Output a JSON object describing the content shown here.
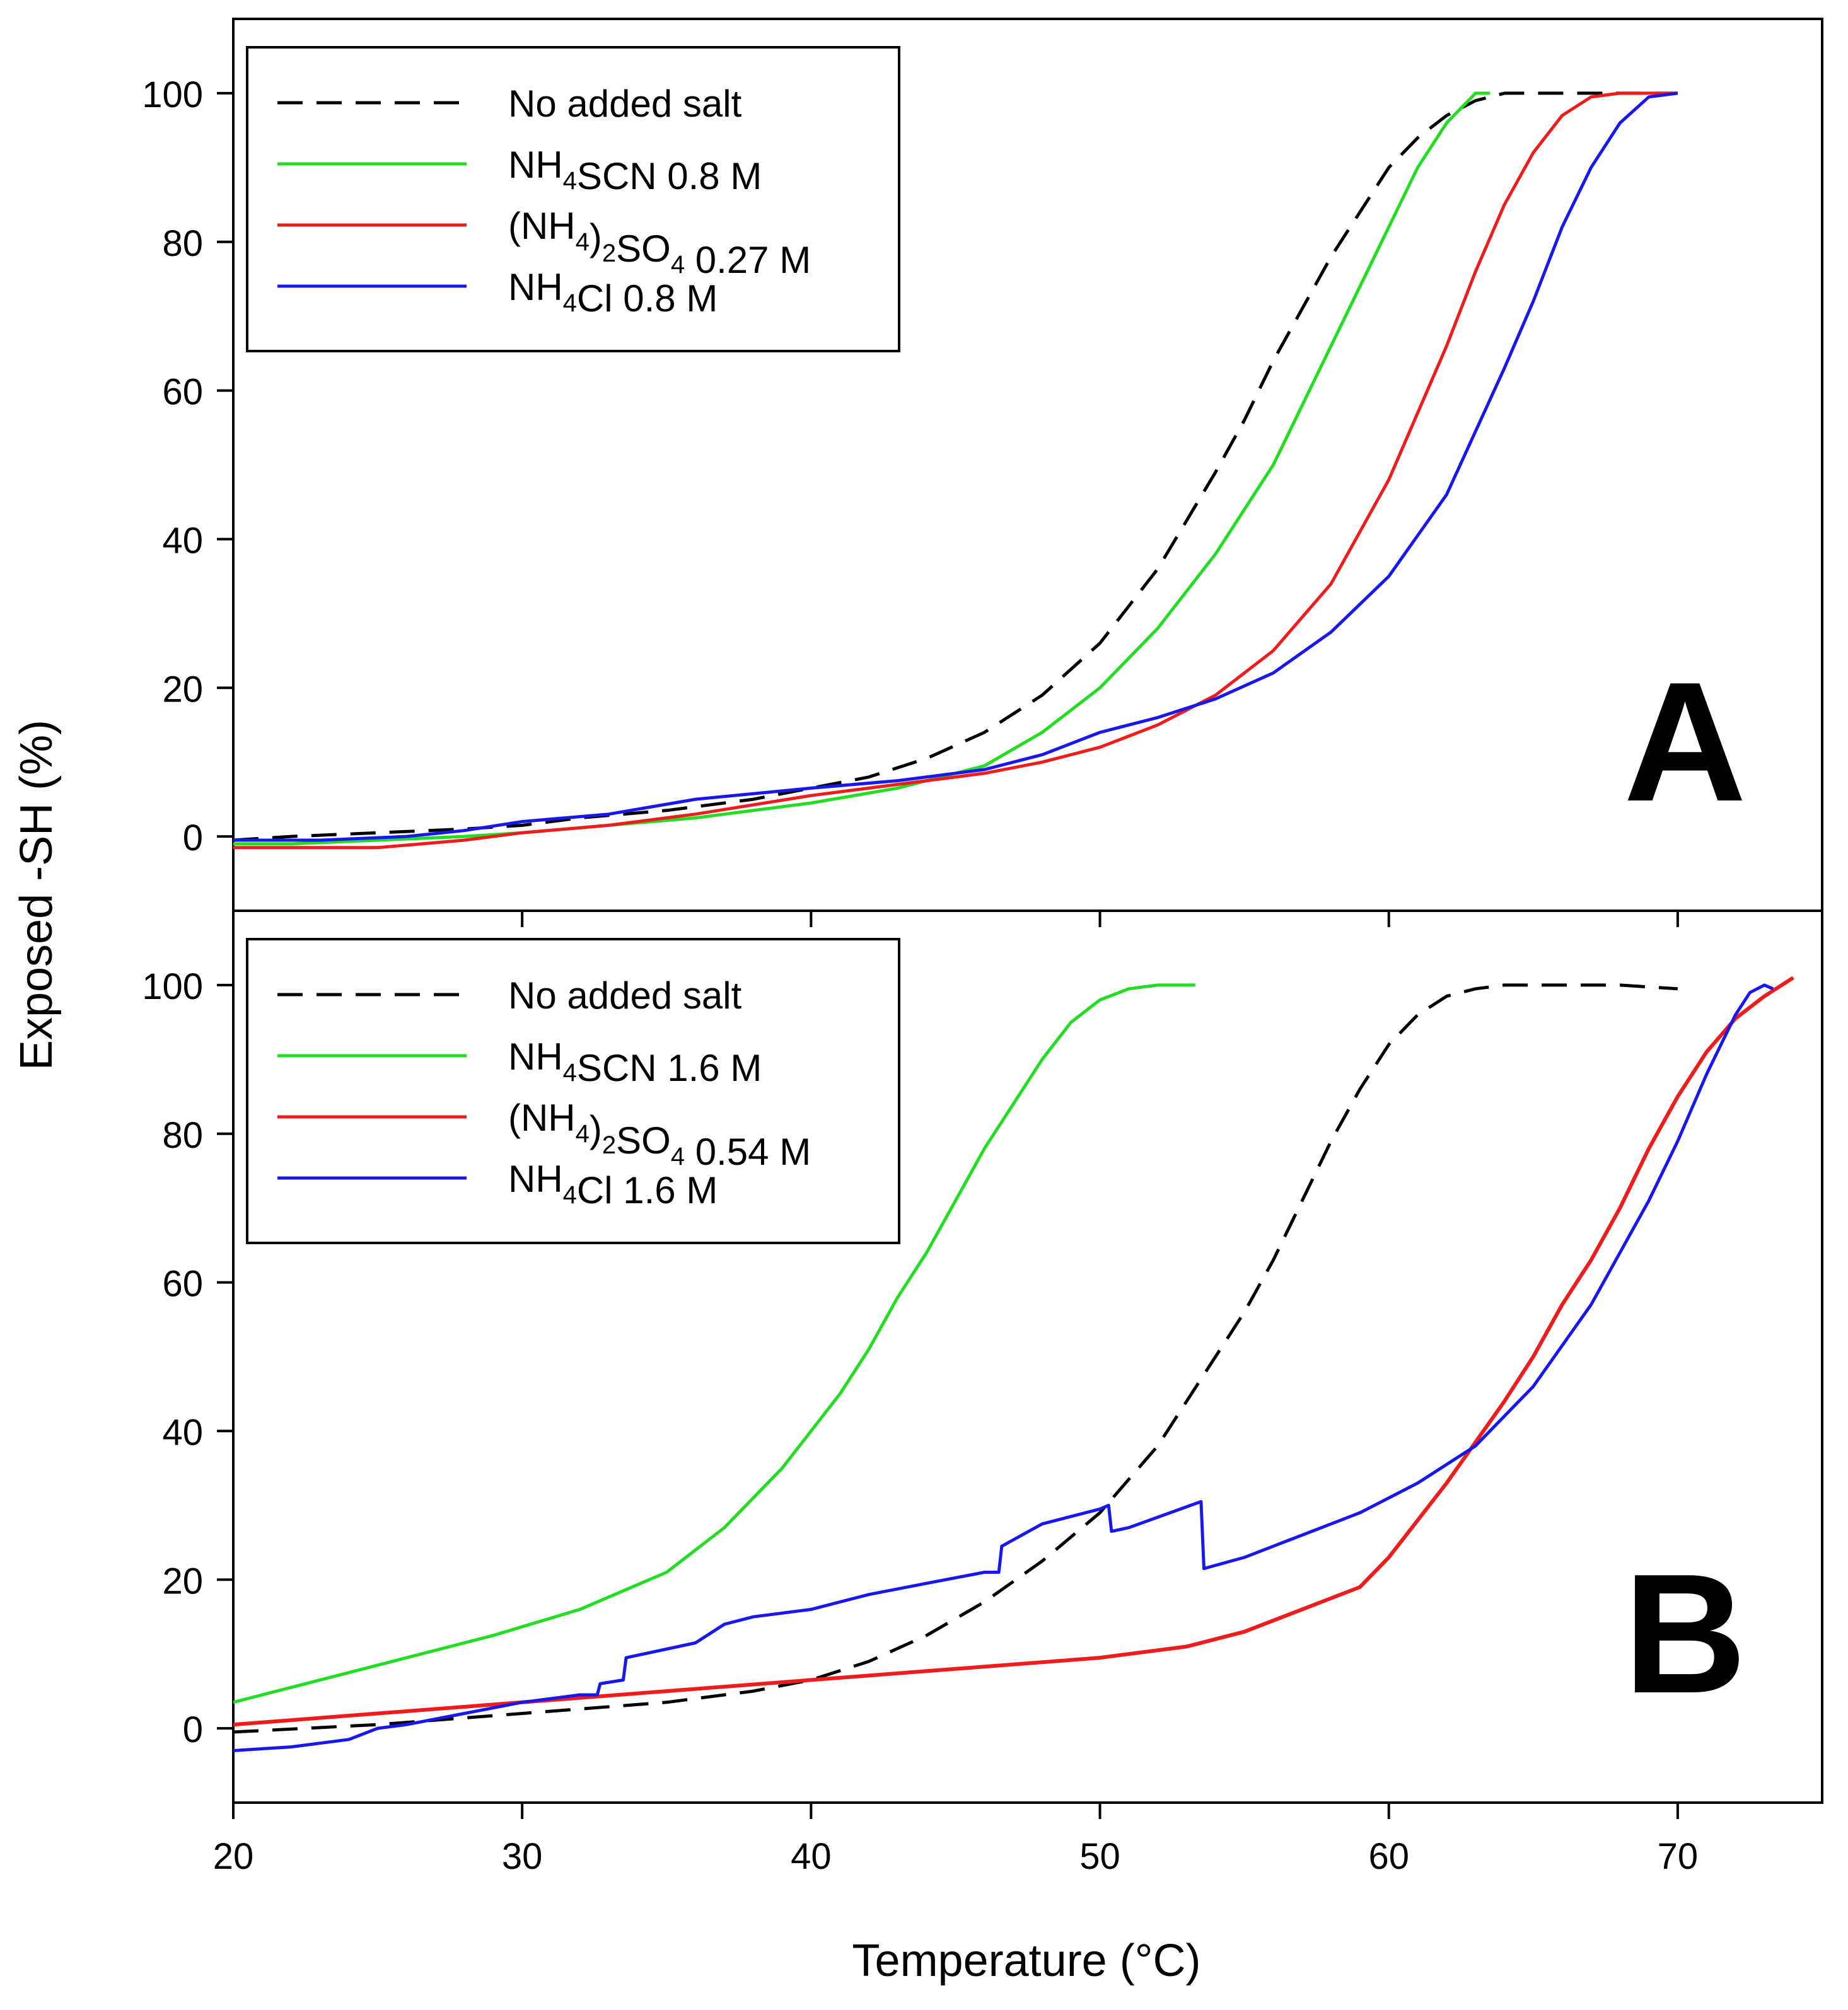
{
  "figure": {
    "xlabel": "Temperature (°C)",
    "ylabel": "Exposed -SH (%)"
  },
  "colors": {
    "none": "#000000",
    "scn": "#22dd22",
    "so4": "#ee1c1c",
    "cl": "#1818ee"
  },
  "chart_data": [
    {
      "type": "line",
      "panel_label": "A",
      "xlim": [
        20,
        75
      ],
      "ylim": [
        -10,
        110
      ],
      "xticks": [
        20,
        30,
        40,
        50,
        60,
        70
      ],
      "yticks": [
        0,
        20,
        40,
        60,
        80,
        100
      ],
      "legend_position": "top-left",
      "legend": [
        {
          "key": "none",
          "name": "No added salt",
          "parts": [
            [
              "No added salt",
              "n"
            ]
          ],
          "dash": true
        },
        {
          "key": "scn",
          "name": "NH4SCN 0.8 M",
          "parts": [
            [
              "NH",
              "n"
            ],
            [
              "4",
              "sub"
            ],
            [
              "SCN 0.8 M",
              "n"
            ]
          ]
        },
        {
          "key": "so4",
          "name": "(NH4)2SO4 0.27 M",
          "parts": [
            [
              "(NH",
              "n"
            ],
            [
              "4",
              "sub"
            ],
            [
              ")",
              "n"
            ],
            [
              "2",
              "sub"
            ],
            [
              "SO",
              "n"
            ],
            [
              "4",
              "sub"
            ],
            [
              " 0.27 M",
              "n"
            ]
          ]
        },
        {
          "key": "cl",
          "name": "NH4Cl 0.8 M",
          "parts": [
            [
              "NH",
              "n"
            ],
            [
              "4",
              "sub"
            ],
            [
              "Cl 0.8 M",
              "n"
            ]
          ]
        }
      ],
      "series": [
        {
          "key": "none",
          "name": "No added salt",
          "x": [
            20,
            22,
            25,
            28,
            30,
            32,
            35,
            38,
            40,
            42,
            44,
            46,
            48,
            50,
            52,
            54,
            55,
            56,
            58,
            60,
            61,
            62,
            63,
            64,
            66,
            70
          ],
          "y": [
            -0.5,
            0,
            0.5,
            1,
            1.5,
            2.5,
            3.5,
            5,
            6.5,
            8,
            10.5,
            14,
            19,
            26,
            36,
            49,
            56,
            64,
            78,
            90,
            94,
            97,
            99,
            100,
            100,
            100
          ]
        },
        {
          "key": "scn",
          "name": "NH4SCN 0.8 M",
          "x": [
            20,
            22,
            25,
            28,
            30,
            33,
            36,
            40,
            43,
            46,
            48,
            50,
            52,
            54,
            56,
            58,
            59,
            60,
            61,
            62,
            63,
            63.5
          ],
          "y": [
            -1,
            -1,
            -0.5,
            0,
            0.5,
            1.5,
            2.5,
            4.5,
            6.5,
            9.5,
            14,
            20,
            28,
            38,
            50,
            66,
            74,
            82,
            90,
            96,
            100,
            100
          ]
        },
        {
          "key": "so4",
          "name": "(NH4)2SO4 0.27 M",
          "x": [
            20,
            22,
            25,
            28,
            30,
            33,
            36,
            40,
            43,
            46,
            48,
            50,
            52,
            54,
            56,
            58,
            60,
            62,
            63,
            64,
            65,
            66,
            67,
            68,
            69,
            70
          ],
          "y": [
            -1.5,
            -1.5,
            -1.5,
            -0.5,
            0.5,
            1.5,
            3,
            5.5,
            7,
            8.5,
            10,
            12,
            15,
            19,
            25,
            34,
            48,
            66,
            76,
            85,
            92,
            97,
            99.5,
            100,
            100,
            100
          ]
        },
        {
          "key": "cl",
          "name": "NH4Cl 0.8 M",
          "x": [
            20,
            23,
            26,
            28,
            30,
            33,
            36,
            40,
            43,
            46,
            48,
            50,
            52,
            54,
            56,
            58,
            60,
            62,
            64,
            65,
            66,
            67,
            68,
            69,
            70
          ],
          "y": [
            -0.5,
            -0.5,
            0,
            0.8,
            2,
            3,
            5,
            6.5,
            7.5,
            9,
            11,
            14,
            16,
            18.5,
            22,
            27.5,
            35,
            46,
            63,
            72,
            82,
            90,
            96,
            99.5,
            100
          ]
        }
      ]
    },
    {
      "type": "line",
      "panel_label": "B",
      "xlim": [
        20,
        75
      ],
      "ylim": [
        -10,
        110
      ],
      "xticks": [
        20,
        30,
        40,
        50,
        60,
        70
      ],
      "yticks": [
        0,
        20,
        40,
        60,
        80,
        100
      ],
      "legend_position": "top-left",
      "legend": [
        {
          "key": "none",
          "name": "No added salt",
          "parts": [
            [
              "No added salt",
              "n"
            ]
          ],
          "dash": true
        },
        {
          "key": "scn",
          "name": "NH4SCN 1.6 M",
          "parts": [
            [
              "NH",
              "n"
            ],
            [
              "4",
              "sub"
            ],
            [
              "SCN 1.6 M",
              "n"
            ]
          ]
        },
        {
          "key": "so4",
          "name": "(NH4)2SO4 0.54 M",
          "parts": [
            [
              "(NH",
              "n"
            ],
            [
              "4",
              "sub"
            ],
            [
              ")",
              "n"
            ],
            [
              "2",
              "sub"
            ],
            [
              "SO",
              "n"
            ],
            [
              "4",
              "sub"
            ],
            [
              " 0.54 M",
              "n"
            ]
          ]
        },
        {
          "key": "cl",
          "name": "NH4Cl 1.6 M",
          "parts": [
            [
              "NH",
              "n"
            ],
            [
              "4",
              "sub"
            ],
            [
              "Cl 1.6 M",
              "n"
            ]
          ]
        }
      ],
      "series": [
        {
          "key": "none",
          "name": "No added salt",
          "x": [
            20,
            25,
            30,
            35,
            38,
            40,
            42,
            44,
            46,
            48,
            50,
            52,
            54,
            55,
            56,
            57,
            58,
            59,
            60,
            61,
            62,
            63,
            64,
            66,
            68,
            70
          ],
          "y": [
            -0.5,
            0.5,
            2,
            3.5,
            5,
            6.5,
            9,
            12.5,
            17,
            22.5,
            29,
            38,
            50,
            56,
            63,
            71,
            79,
            86,
            92,
            96,
            98.5,
            99.5,
            100,
            100,
            100,
            99.5
          ]
        },
        {
          "key": "scn",
          "name": "NH4SCN 1.6 M",
          "x": [
            20,
            23,
            26,
            29,
            32,
            35,
            37,
            39,
            41,
            42,
            43,
            44,
            45,
            46,
            47,
            48,
            49,
            50,
            51,
            52,
            52.5,
            53,
            53.3
          ],
          "y": [
            3.5,
            6.5,
            9.5,
            12.5,
            16,
            21,
            27,
            35,
            45,
            51,
            58,
            64,
            71,
            78,
            84,
            90,
            95,
            98,
            99.5,
            100,
            100,
            100,
            100
          ]
        },
        {
          "key": "so4",
          "name": "(NH4)2SO4 0.54 M",
          "x": [
            20,
            25,
            30,
            35,
            40,
            45,
            50,
            53,
            55,
            57,
            59,
            60,
            62,
            64,
            65,
            66,
            67,
            68,
            69,
            70,
            71,
            72,
            73,
            74
          ],
          "y": [
            0.5,
            2,
            3.5,
            5,
            6.5,
            8,
            9.5,
            11,
            13,
            16,
            19,
            23,
            33,
            44,
            50,
            57,
            63,
            70,
            78,
            85,
            91,
            95.5,
            98.5,
            101
          ]
        },
        {
          "key": "cl",
          "name": "NH4Cl 1.6 M",
          "x": [
            20,
            22,
            24,
            25,
            26,
            28,
            30,
            32,
            32.6,
            32.7,
            33.5,
            33.6,
            36,
            37,
            38,
            40,
            42,
            44,
            46,
            46.5,
            46.6,
            48,
            50,
            50.3,
            50.4,
            51,
            53.5,
            53.6,
            55,
            57,
            59,
            61,
            63,
            65,
            67,
            69,
            70,
            71,
            72,
            72.5,
            73,
            73.3
          ],
          "y": [
            -3,
            -2.5,
            -1.5,
            0,
            0.5,
            2,
            3.5,
            4.5,
            4.5,
            6,
            6.5,
            9.5,
            11.5,
            14,
            15,
            16,
            18,
            19.5,
            21,
            21,
            24.5,
            27.5,
            29.5,
            30,
            26.5,
            27,
            30.5,
            21.5,
            23,
            26,
            29,
            33,
            38,
            46,
            57,
            71,
            79,
            88,
            96,
            99,
            100,
            99.5
          ]
        }
      ]
    }
  ]
}
